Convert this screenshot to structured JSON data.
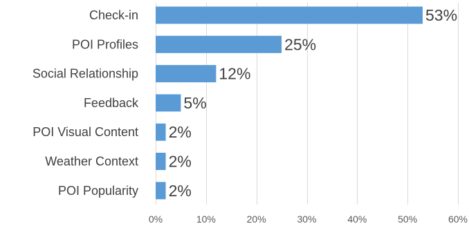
{
  "chart_data": {
    "type": "bar",
    "orientation": "horizontal",
    "categories": [
      "Check-in",
      "POI Profiles",
      "Social Relationship",
      "Feedback",
      "POI Visual Content",
      "Weather Context",
      "POI Popularity"
    ],
    "values": [
      53,
      25,
      12,
      5,
      2,
      2,
      2
    ],
    "value_labels": [
      "53%",
      "25%",
      "12%",
      "5%",
      "2%",
      "2%",
      "2%"
    ],
    "xlim": [
      0,
      60
    ],
    "xticks": [
      0,
      10,
      20,
      30,
      40,
      50,
      60
    ],
    "xtick_labels": [
      "0%",
      "10%",
      "20%",
      "30%",
      "40%",
      "50%",
      "60%"
    ],
    "grid": true,
    "bar_color": "#5b9bd5",
    "title": "",
    "xlabel": "",
    "ylabel": ""
  }
}
